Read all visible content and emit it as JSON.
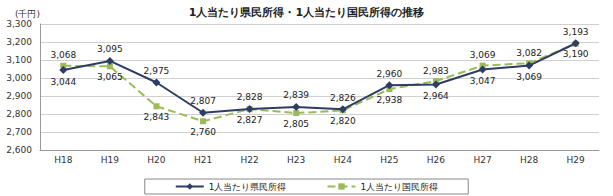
{
  "chart_data": {
    "type": "line",
    "title": "1人当たり県民所得・1人当たり国民所得の推移",
    "y_label": "(千円)",
    "categories": [
      "H18",
      "H19",
      "H20",
      "H21",
      "H22",
      "H23",
      "H24",
      "H25",
      "H26",
      "H27",
      "H28",
      "H29"
    ],
    "series": [
      {
        "name": "1人当たり県民所得",
        "color": "#2e3d66",
        "marker": "diamond",
        "line_style": "solid",
        "values": [
          3044,
          3095,
          2975,
          2807,
          2828,
          2839,
          2826,
          2960,
          2964,
          3047,
          3069,
          3193
        ],
        "value_labels": [
          "3,044",
          "3,095",
          "2,975",
          "2,807",
          "2,828",
          "2,839",
          "2,826",
          "2,960",
          "2,964",
          "3,047",
          "3,069",
          "3,193"
        ]
      },
      {
        "name": "1人当たり国民所得",
        "color": "#9bbb59",
        "marker": "square",
        "line_style": "dashed",
        "values": [
          3068,
          3065,
          2843,
          2760,
          2827,
          2805,
          2820,
          2938,
          2983,
          3069,
          3082,
          3190
        ],
        "value_labels": [
          "3,068",
          "3,065",
          "2,843",
          "2,760",
          "2,827",
          "2,805",
          "2,820",
          "2,938",
          "2,983",
          "3,069",
          "3,082",
          "3,190"
        ]
      }
    ],
    "ylim": [
      2600,
      3300
    ],
    "yticks": [
      {
        "value": 2600,
        "label": "2,600"
      },
      {
        "value": 2700,
        "label": "2,700"
      },
      {
        "value": 2800,
        "label": "2,800"
      },
      {
        "value": 2900,
        "label": "2,900"
      },
      {
        "value": 3000,
        "label": "3,000"
      },
      {
        "value": 3100,
        "label": "3,100"
      },
      {
        "value": 3200,
        "label": "3,200"
      },
      {
        "value": 3300,
        "label": "3,300"
      }
    ],
    "grid": true,
    "legend": "bottom",
    "data_labels": true
  }
}
